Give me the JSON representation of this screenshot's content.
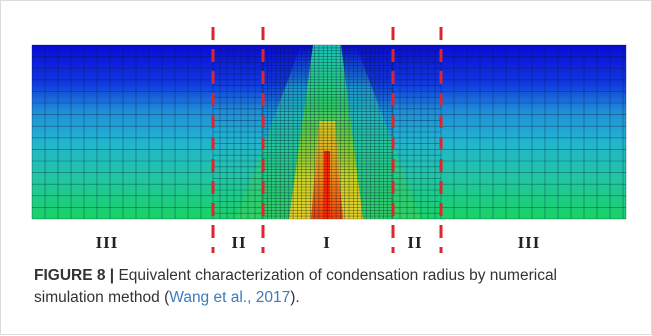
{
  "zones": {
    "left_outer": "III",
    "left_mid": "II",
    "center": "I",
    "right_mid": "II",
    "right_outer": "III"
  },
  "caption": {
    "figure_label": "FIGURE 8 |",
    "text": " Equivalent characterization of condensation radius by numerical simulation method (",
    "citation": "Wang et al., 2017",
    "end": ")."
  },
  "colors": {
    "boundary_line": "#e0242b",
    "field_top": "#1010d8",
    "field_bottom": "#18d060",
    "core_hot": "#ff3000"
  }
}
